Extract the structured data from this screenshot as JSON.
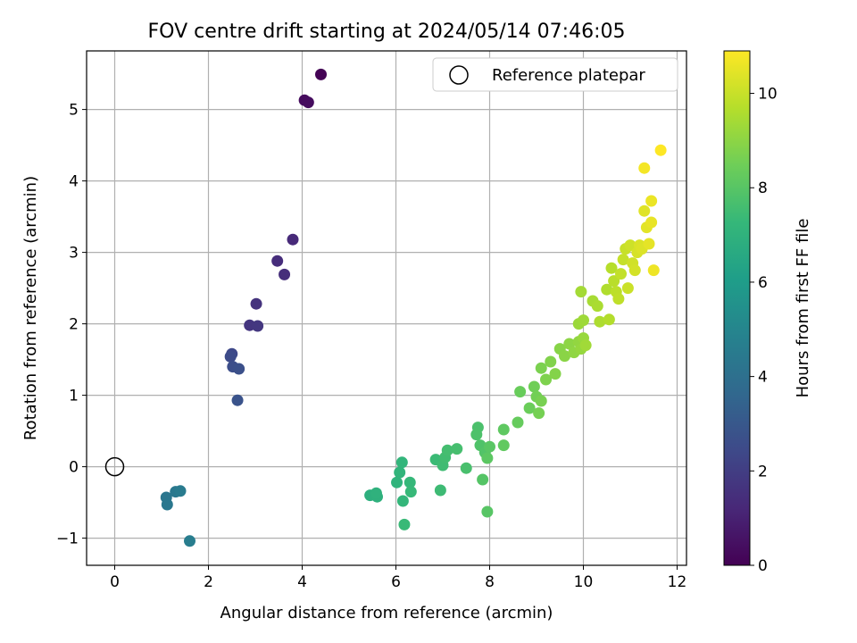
{
  "chart_data": {
    "type": "scatter",
    "title": "FOV centre drift starting at 2024/05/14 07:46:05",
    "xlabel": "Angular distance from reference (arcmin)",
    "ylabel": "Rotation from reference (arcmin)",
    "xlim": [
      -0.6,
      12.2
    ],
    "ylim": [
      -1.38,
      5.82
    ],
    "xticks": [
      0,
      2,
      4,
      6,
      8,
      10,
      12
    ],
    "yticks": [
      -1,
      0,
      1,
      2,
      3,
      4,
      5
    ],
    "xtick_labels": [
      "0",
      "2",
      "4",
      "6",
      "8",
      "10",
      "12"
    ],
    "ytick_labels": [
      "−1",
      "0",
      "1",
      "2",
      "3",
      "4",
      "5"
    ],
    "grid": true,
    "legend": {
      "position": "top-right",
      "entries": [
        "Reference platepar"
      ]
    },
    "reference_point": {
      "x": 0,
      "y": 0,
      "label": "Reference platepar"
    },
    "colorbar": {
      "label": "Hours from first FF file",
      "range": [
        0,
        10.9
      ],
      "ticks": [
        0,
        2,
        4,
        6,
        8,
        10
      ],
      "tick_labels": [
        "0",
        "2",
        "4",
        "6",
        "8",
        "10"
      ],
      "colormap": "viridis",
      "colors": [
        "#440154",
        "#482878",
        "#3e4989",
        "#31688e",
        "#26828e",
        "#1f9e89",
        "#35b779",
        "#6ece58",
        "#b5de2b",
        "#fde725"
      ]
    },
    "series": [
      {
        "points": [
          [
            4.4,
            5.49,
            0.05
          ],
          [
            4.05,
            5.13,
            0.3
          ],
          [
            4.13,
            5.1,
            0.35
          ],
          [
            3.8,
            3.18,
            1.3
          ],
          [
            3.47,
            2.88,
            1.4
          ],
          [
            3.62,
            2.69,
            1.45
          ],
          [
            3.02,
            2.28,
            1.6
          ],
          [
            2.88,
            1.98,
            1.7
          ],
          [
            3.05,
            1.97,
            1.75
          ],
          [
            2.5,
            1.58,
            2.4
          ],
          [
            2.47,
            1.54,
            2.5
          ],
          [
            2.52,
            1.4,
            2.6
          ],
          [
            2.65,
            1.37,
            2.7
          ],
          [
            2.62,
            0.93,
            2.8
          ],
          [
            1.1,
            -0.43,
            4.3
          ],
          [
            1.12,
            -0.53,
            4.35
          ],
          [
            1.3,
            -0.35,
            4.4
          ],
          [
            1.4,
            -0.34,
            4.5
          ],
          [
            1.6,
            -1.04,
            4.6
          ],
          [
            5.45,
            -0.4,
            6.9
          ],
          [
            5.6,
            -0.42,
            6.95
          ],
          [
            5.58,
            -0.37,
            7.0
          ],
          [
            6.02,
            -0.22,
            7.05
          ],
          [
            6.08,
            -0.08,
            7.1
          ],
          [
            6.13,
            0.06,
            7.15
          ],
          [
            6.15,
            -0.48,
            7.2
          ],
          [
            6.3,
            -0.22,
            7.25
          ],
          [
            6.32,
            -0.35,
            7.3
          ],
          [
            6.18,
            -0.81,
            7.35
          ],
          [
            6.85,
            0.1,
            7.4
          ],
          [
            6.95,
            -0.33,
            7.45
          ],
          [
            7.0,
            0.02,
            7.5
          ],
          [
            7.05,
            0.13,
            7.55
          ],
          [
            7.1,
            0.23,
            7.6
          ],
          [
            7.3,
            0.25,
            7.65
          ],
          [
            7.5,
            -0.02,
            7.7
          ],
          [
            7.75,
            0.55,
            7.75
          ],
          [
            7.72,
            0.45,
            7.8
          ],
          [
            7.8,
            0.3,
            7.85
          ],
          [
            7.9,
            0.2,
            7.9
          ],
          [
            7.85,
            -0.18,
            7.95
          ],
          [
            7.95,
            -0.63,
            8.0
          ],
          [
            8.0,
            0.28,
            8.05
          ],
          [
            7.95,
            0.12,
            8.1
          ],
          [
            8.3,
            0.52,
            8.15
          ],
          [
            8.3,
            0.3,
            8.2
          ],
          [
            8.6,
            0.62,
            8.3
          ],
          [
            8.65,
            1.05,
            8.35
          ],
          [
            8.85,
            0.82,
            8.4
          ],
          [
            8.95,
            1.12,
            8.5
          ],
          [
            9.0,
            0.98,
            8.55
          ],
          [
            9.05,
            0.75,
            8.6
          ],
          [
            9.1,
            0.92,
            8.65
          ],
          [
            9.1,
            1.38,
            8.7
          ],
          [
            9.2,
            1.22,
            8.75
          ],
          [
            9.3,
            1.47,
            8.8
          ],
          [
            9.4,
            1.3,
            8.85
          ],
          [
            9.5,
            1.65,
            8.9
          ],
          [
            9.6,
            1.55,
            8.95
          ],
          [
            9.7,
            1.72,
            9.0
          ],
          [
            9.8,
            1.6,
            9.05
          ],
          [
            9.9,
            1.75,
            9.1
          ],
          [
            9.95,
            1.65,
            9.15
          ],
          [
            10.0,
            1.8,
            9.2
          ],
          [
            9.9,
            2.0,
            9.25
          ],
          [
            10.0,
            2.05,
            9.3
          ],
          [
            10.05,
            1.7,
            9.35
          ],
          [
            9.95,
            2.45,
            9.4
          ],
          [
            10.2,
            2.32,
            9.45
          ],
          [
            10.3,
            2.25,
            9.5
          ],
          [
            10.35,
            2.03,
            9.55
          ],
          [
            10.5,
            2.48,
            9.6
          ],
          [
            10.55,
            2.06,
            9.65
          ],
          [
            10.6,
            2.78,
            9.7
          ],
          [
            10.65,
            2.6,
            9.75
          ],
          [
            10.7,
            2.45,
            9.8
          ],
          [
            10.75,
            2.35,
            9.85
          ],
          [
            10.8,
            2.7,
            9.9
          ],
          [
            10.85,
            2.9,
            9.95
          ],
          [
            10.9,
            3.05,
            10.0
          ],
          [
            10.95,
            2.5,
            10.05
          ],
          [
            11.0,
            3.1,
            10.1
          ],
          [
            11.05,
            2.85,
            10.15
          ],
          [
            11.1,
            2.75,
            10.2
          ],
          [
            11.15,
            3.0,
            10.25
          ],
          [
            11.2,
            3.1,
            10.3
          ],
          [
            11.25,
            3.05,
            10.35
          ],
          [
            11.3,
            3.58,
            10.4
          ],
          [
            11.35,
            3.35,
            10.45
          ],
          [
            11.4,
            3.12,
            10.5
          ],
          [
            11.45,
            3.42,
            10.55
          ],
          [
            11.45,
            3.72,
            10.6
          ],
          [
            11.5,
            2.75,
            10.65
          ],
          [
            11.3,
            4.18,
            10.75
          ],
          [
            11.65,
            4.43,
            10.9
          ]
        ]
      }
    ]
  }
}
